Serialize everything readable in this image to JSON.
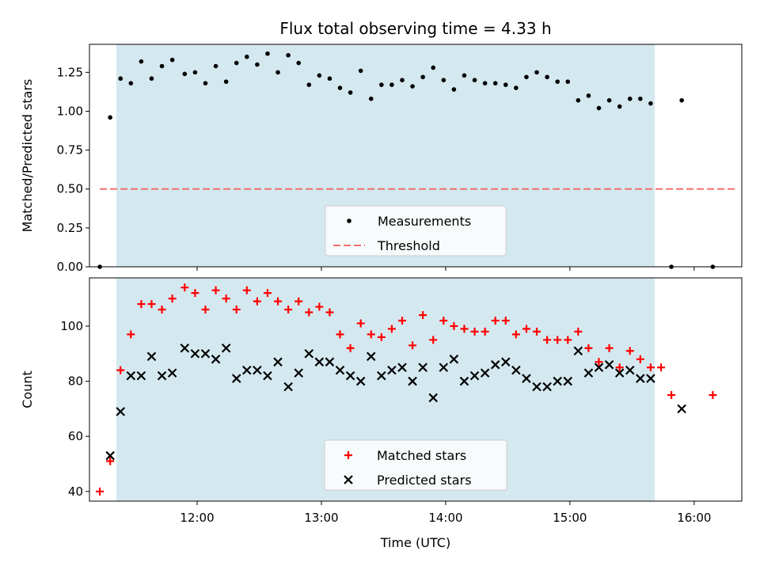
{
  "chart_data": {
    "title": "Flux total observing time = 4.33 h",
    "xlabel": "Time (UTC)",
    "x_ticks": [
      "12:00",
      "13:00",
      "14:00",
      "15:00",
      "16:00"
    ],
    "x_range": [
      "11:08",
      "16:23"
    ],
    "observing_window": {
      "start": "11:21",
      "end": "15:41",
      "color": "#d4e9ef"
    },
    "panels": [
      {
        "type": "scatter",
        "ylabel": "Matched/Predicted stars",
        "ylim": [
          0,
          1.43
        ],
        "y_ticks": [
          "0.00",
          "0.25",
          "0.50",
          "0.75",
          "1.00",
          "1.25"
        ],
        "legend": {
          "position": "lower-center",
          "entries": [
            "Measurements",
            "Threshold"
          ]
        },
        "threshold": {
          "name": "Threshold",
          "value": 0.5,
          "x_start": "11:13",
          "x_end": "16:20",
          "color": "#f07070",
          "style": "dashed"
        },
        "series": [
          {
            "name": "Measurements",
            "marker": "dot",
            "color": "#000000",
            "points": [
              [
                "11:13",
                0.0
              ],
              [
                "11:18",
                0.96
              ],
              [
                "11:23",
                1.21
              ],
              [
                "11:28",
                1.18
              ],
              [
                "11:33",
                1.32
              ],
              [
                "11:38",
                1.21
              ],
              [
                "11:43",
                1.29
              ],
              [
                "11:48",
                1.33
              ],
              [
                "11:54",
                1.24
              ],
              [
                "11:59",
                1.25
              ],
              [
                "12:04",
                1.18
              ],
              [
                "12:09",
                1.29
              ],
              [
                "12:14",
                1.19
              ],
              [
                "12:19",
                1.31
              ],
              [
                "12:24",
                1.35
              ],
              [
                "12:29",
                1.3
              ],
              [
                "12:34",
                1.37
              ],
              [
                "12:39",
                1.25
              ],
              [
                "12:44",
                1.36
              ],
              [
                "12:49",
                1.31
              ],
              [
                "12:54",
                1.17
              ],
              [
                "12:59",
                1.23
              ],
              [
                "13:04",
                1.21
              ],
              [
                "13:09",
                1.15
              ],
              [
                "13:14",
                1.12
              ],
              [
                "13:19",
                1.26
              ],
              [
                "13:24",
                1.08
              ],
              [
                "13:29",
                1.17
              ],
              [
                "13:34",
                1.17
              ],
              [
                "13:39",
                1.2
              ],
              [
                "13:44",
                1.16
              ],
              [
                "13:49",
                1.22
              ],
              [
                "13:54",
                1.28
              ],
              [
                "13:59",
                1.2
              ],
              [
                "14:04",
                1.14
              ],
              [
                "14:09",
                1.23
              ],
              [
                "14:14",
                1.2
              ],
              [
                "14:19",
                1.18
              ],
              [
                "14:24",
                1.18
              ],
              [
                "14:29",
                1.17
              ],
              [
                "14:34",
                1.15
              ],
              [
                "14:39",
                1.22
              ],
              [
                "14:44",
                1.25
              ],
              [
                "14:49",
                1.22
              ],
              [
                "14:54",
                1.19
              ],
              [
                "14:59",
                1.19
              ],
              [
                "15:04",
                1.07
              ],
              [
                "15:09",
                1.1
              ],
              [
                "15:14",
                1.02
              ],
              [
                "15:19",
                1.07
              ],
              [
                "15:24",
                1.03
              ],
              [
                "15:29",
                1.08
              ],
              [
                "15:34",
                1.08
              ],
              [
                "15:39",
                1.05
              ],
              [
                "15:49",
                0.0
              ],
              [
                "15:54",
                1.07
              ],
              [
                "16:09",
                0.0
              ]
            ]
          }
        ]
      },
      {
        "type": "scatter",
        "ylabel": "Count",
        "ylim": [
          36.5,
          117.5
        ],
        "y_ticks": [
          "40",
          "60",
          "80",
          "100"
        ],
        "legend": {
          "position": "lower-center",
          "entries": [
            "Matched stars",
            "Predicted stars"
          ]
        },
        "series": [
          {
            "name": "Matched stars",
            "marker": "plus",
            "color": "#ff0000",
            "points": [
              [
                "11:13",
                40
              ],
              [
                "11:18",
                51
              ],
              [
                "11:23",
                84
              ],
              [
                "11:28",
                97
              ],
              [
                "11:33",
                108
              ],
              [
                "11:38",
                108
              ],
              [
                "11:43",
                106
              ],
              [
                "11:48",
                110
              ],
              [
                "11:54",
                114
              ],
              [
                "11:59",
                112
              ],
              [
                "12:04",
                106
              ],
              [
                "12:09",
                113
              ],
              [
                "12:14",
                110
              ],
              [
                "12:19",
                106
              ],
              [
                "12:24",
                113
              ],
              [
                "12:29",
                109
              ],
              [
                "12:34",
                112
              ],
              [
                "12:39",
                109
              ],
              [
                "12:44",
                106
              ],
              [
                "12:49",
                109
              ],
              [
                "12:54",
                105
              ],
              [
                "12:59",
                107
              ],
              [
                "13:04",
                105
              ],
              [
                "13:09",
                97
              ],
              [
                "13:14",
                92
              ],
              [
                "13:19",
                101
              ],
              [
                "13:24",
                97
              ],
              [
                "13:29",
                96
              ],
              [
                "13:34",
                99
              ],
              [
                "13:39",
                102
              ],
              [
                "13:44",
                93
              ],
              [
                "13:49",
                104
              ],
              [
                "13:54",
                95
              ],
              [
                "13:59",
                102
              ],
              [
                "14:04",
                100
              ],
              [
                "14:09",
                99
              ],
              [
                "14:14",
                98
              ],
              [
                "14:19",
                98
              ],
              [
                "14:24",
                102
              ],
              [
                "14:29",
                102
              ],
              [
                "14:34",
                97
              ],
              [
                "14:39",
                99
              ],
              [
                "14:44",
                98
              ],
              [
                "14:49",
                95
              ],
              [
                "14:54",
                95
              ],
              [
                "14:59",
                95
              ],
              [
                "15:04",
                98
              ],
              [
                "15:09",
                92
              ],
              [
                "15:14",
                87
              ],
              [
                "15:19",
                92
              ],
              [
                "15:24",
                85
              ],
              [
                "15:29",
                91
              ],
              [
                "15:34",
                88
              ],
              [
                "15:39",
                85
              ],
              [
                "15:44",
                85
              ],
              [
                "15:49",
                75
              ],
              [
                "16:09",
                75
              ]
            ]
          },
          {
            "name": "Predicted stars",
            "marker": "x",
            "color": "#000000",
            "points": [
              [
                "11:18",
                53
              ],
              [
                "11:23",
                69
              ],
              [
                "11:28",
                82
              ],
              [
                "11:33",
                82
              ],
              [
                "11:38",
                89
              ],
              [
                "11:43",
                82
              ],
              [
                "11:48",
                83
              ],
              [
                "11:54",
                92
              ],
              [
                "11:59",
                90
              ],
              [
                "12:04",
                90
              ],
              [
                "12:09",
                88
              ],
              [
                "12:14",
                92
              ],
              [
                "12:19",
                81
              ],
              [
                "12:24",
                84
              ],
              [
                "12:29",
                84
              ],
              [
                "12:34",
                82
              ],
              [
                "12:39",
                87
              ],
              [
                "12:44",
                78
              ],
              [
                "12:49",
                83
              ],
              [
                "12:54",
                90
              ],
              [
                "12:59",
                87
              ],
              [
                "13:04",
                87
              ],
              [
                "13:09",
                84
              ],
              [
                "13:14",
                82
              ],
              [
                "13:19",
                80
              ],
              [
                "13:24",
                89
              ],
              [
                "13:29",
                82
              ],
              [
                "13:34",
                84
              ],
              [
                "13:39",
                85
              ],
              [
                "13:44",
                80
              ],
              [
                "13:49",
                85
              ],
              [
                "13:54",
                74
              ],
              [
                "13:59",
                85
              ],
              [
                "14:04",
                88
              ],
              [
                "14:09",
                80
              ],
              [
                "14:14",
                82
              ],
              [
                "14:19",
                83
              ],
              [
                "14:24",
                86
              ],
              [
                "14:29",
                87
              ],
              [
                "14:34",
                84
              ],
              [
                "14:39",
                81
              ],
              [
                "14:44",
                78
              ],
              [
                "14:49",
                78
              ],
              [
                "14:54",
                80
              ],
              [
                "14:59",
                80
              ],
              [
                "15:04",
                91
              ],
              [
                "15:09",
                83
              ],
              [
                "15:14",
                85
              ],
              [
                "15:19",
                86
              ],
              [
                "15:24",
                83
              ],
              [
                "15:29",
                84
              ],
              [
                "15:34",
                81
              ],
              [
                "15:39",
                81
              ],
              [
                "15:54",
                70
              ]
            ]
          }
        ]
      }
    ]
  }
}
